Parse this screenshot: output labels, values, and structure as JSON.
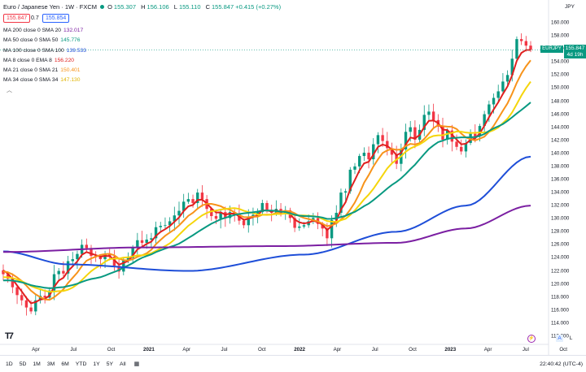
{
  "header": {
    "symbol": "Euro / Japanese Yen · 1W · FXCM",
    "ohlc": [
      {
        "k": "O",
        "v": "155.307"
      },
      {
        "k": "H",
        "v": "156.106"
      },
      {
        "k": "L",
        "v": "155.110"
      },
      {
        "k": "C",
        "v": "155.847 +0.415 (+0.27%)"
      }
    ],
    "sell_price": "155.847",
    "spread": "0.7",
    "buy_price": "155.854"
  },
  "indicators": [
    {
      "label": "MA 200 close 0 SMA 20",
      "value": "132.017",
      "color": "#7b1fa2"
    },
    {
      "label": "MA 50 close 0 SMA 50",
      "value": "145.776",
      "color": "#089981"
    },
    {
      "label": "MA 100 close 0 SMA 100",
      "value": "139.533",
      "color": "#1e4ed8"
    },
    {
      "label": "MA 8 close 0 EMA 8",
      "value": "156.220",
      "color": "#e0201f"
    },
    {
      "label": "MA 21 close 0 SMA 21",
      "value": "150.401",
      "color": "#f7931a"
    },
    {
      "label": "MA 34 close 0 SMA 34",
      "value": "147.130",
      "color": "#f5d50b"
    }
  ],
  "collapse_icon": "chevron-up-icon",
  "currency": "JPY",
  "price_tag": {
    "symbol": "EURJPY",
    "price": "155.847",
    "countdown": "4d 19h"
  },
  "y_ticks": [
    "160.000",
    "158.000",
    "156.000",
    "154.000",
    "152.000",
    "150.000",
    "148.000",
    "146.000",
    "144.000",
    "142.000",
    "140.000",
    "138.000",
    "136.000",
    "134.000",
    "132.000",
    "130.000",
    "128.000",
    "126.000",
    "124.000",
    "122.000",
    "120.000",
    "118.000",
    "116.000",
    "114.000",
    "112.000"
  ],
  "x_ticks": [
    {
      "label": "Apr",
      "bold": false
    },
    {
      "label": "Jul",
      "bold": false
    },
    {
      "label": "Oct",
      "bold": false
    },
    {
      "label": "2021",
      "bold": true
    },
    {
      "label": "Apr",
      "bold": false
    },
    {
      "label": "Jul",
      "bold": false
    },
    {
      "label": "Oct",
      "bold": false
    },
    {
      "label": "2022",
      "bold": true
    },
    {
      "label": "Apr",
      "bold": false
    },
    {
      "label": "Jul",
      "bold": false
    },
    {
      "label": "Oct",
      "bold": false
    },
    {
      "label": "2023",
      "bold": true
    },
    {
      "label": "Apr",
      "bold": false
    },
    {
      "label": "Jul",
      "bold": false
    },
    {
      "label": "Oct",
      "bold": false
    }
  ],
  "bottom": {
    "timeframes": [
      "1D",
      "5D",
      "1M",
      "3M",
      "6M",
      "YTD",
      "1Y",
      "5Y",
      "All"
    ],
    "range_icon": "calendar-range-icon",
    "clock": "22:40:42 (UTC-4)"
  },
  "scale_buttons": {
    "auto": "A",
    "log": "L"
  },
  "colors": {
    "up": "#089981",
    "down": "#f23645",
    "accent": "#2962ff"
  },
  "chart_data": {
    "type": "candlestick",
    "ylim": [
      111,
      161
    ],
    "x_axis_labels": [
      "Apr",
      "Jul",
      "Oct",
      "2021",
      "Apr",
      "Jul",
      "Oct",
      "2022",
      "Apr",
      "Jul",
      "Oct",
      "2023",
      "Apr",
      "Jul",
      "Oct"
    ],
    "close_series": [
      121.5,
      120.8,
      119.5,
      118.3,
      117.5,
      116.4,
      115.8,
      117.5,
      118.2,
      117.9,
      119.0,
      121.5,
      122.0,
      121.6,
      123.5,
      123.8,
      124.6,
      126.0,
      125.5,
      124.3,
      124.1,
      123.8,
      124.5,
      124.2,
      122.8,
      121.9,
      123.6,
      124.0,
      125.6,
      126.7,
      126.3,
      126.8,
      127.0,
      128.7,
      128.9,
      129.0,
      129.6,
      130.5,
      131.2,
      132.6,
      133.0,
      132.4,
      134.0,
      133.0,
      131.5,
      130.4,
      130.0,
      131.0,
      130.1,
      131.0,
      130.8,
      129.7,
      129.0,
      130.3,
      130.6,
      131.0,
      132.4,
      131.2,
      130.9,
      131.5,
      130.7,
      131.3,
      130.1,
      128.6,
      128.8,
      129.0,
      129.6,
      130.1,
      129.2,
      128.5,
      127.0,
      129.8,
      130.9,
      134.0,
      134.2,
      137.5,
      138.0,
      139.6,
      140.1,
      139.1,
      141.4,
      142.8,
      141.9,
      140.8,
      139.8,
      138.4,
      140.6,
      143.3,
      144.0,
      142.1,
      143.6,
      145.9,
      146.4,
      145.1,
      144.1,
      142.1,
      143.5,
      141.8,
      141.0,
      140.3,
      141.6,
      143.0,
      142.6,
      144.2,
      146.0,
      147.5,
      148.5,
      149.5,
      151.0,
      152.0,
      154.5,
      157.5,
      157.2,
      156.5,
      155.847
    ],
    "series": [
      {
        "name": "MA 200 close 0 SMA 20",
        "color": "#7b1fa2",
        "last": 132.017
      },
      {
        "name": "MA 50 close 0 SMA 50",
        "color": "#089981",
        "last": 145.776
      },
      {
        "name": "MA 100 close 0 SMA 100",
        "color": "#1e4ed8",
        "last": 139.533
      },
      {
        "name": "MA 8 close 0 EMA 8",
        "color": "#e0201f",
        "last": 156.22
      },
      {
        "name": "MA 21 close 0 SMA 21",
        "color": "#f7931a",
        "last": 150.401
      },
      {
        "name": "MA 34 close 0 SMA 34",
        "color": "#f5d50b",
        "last": 147.13
      }
    ]
  }
}
